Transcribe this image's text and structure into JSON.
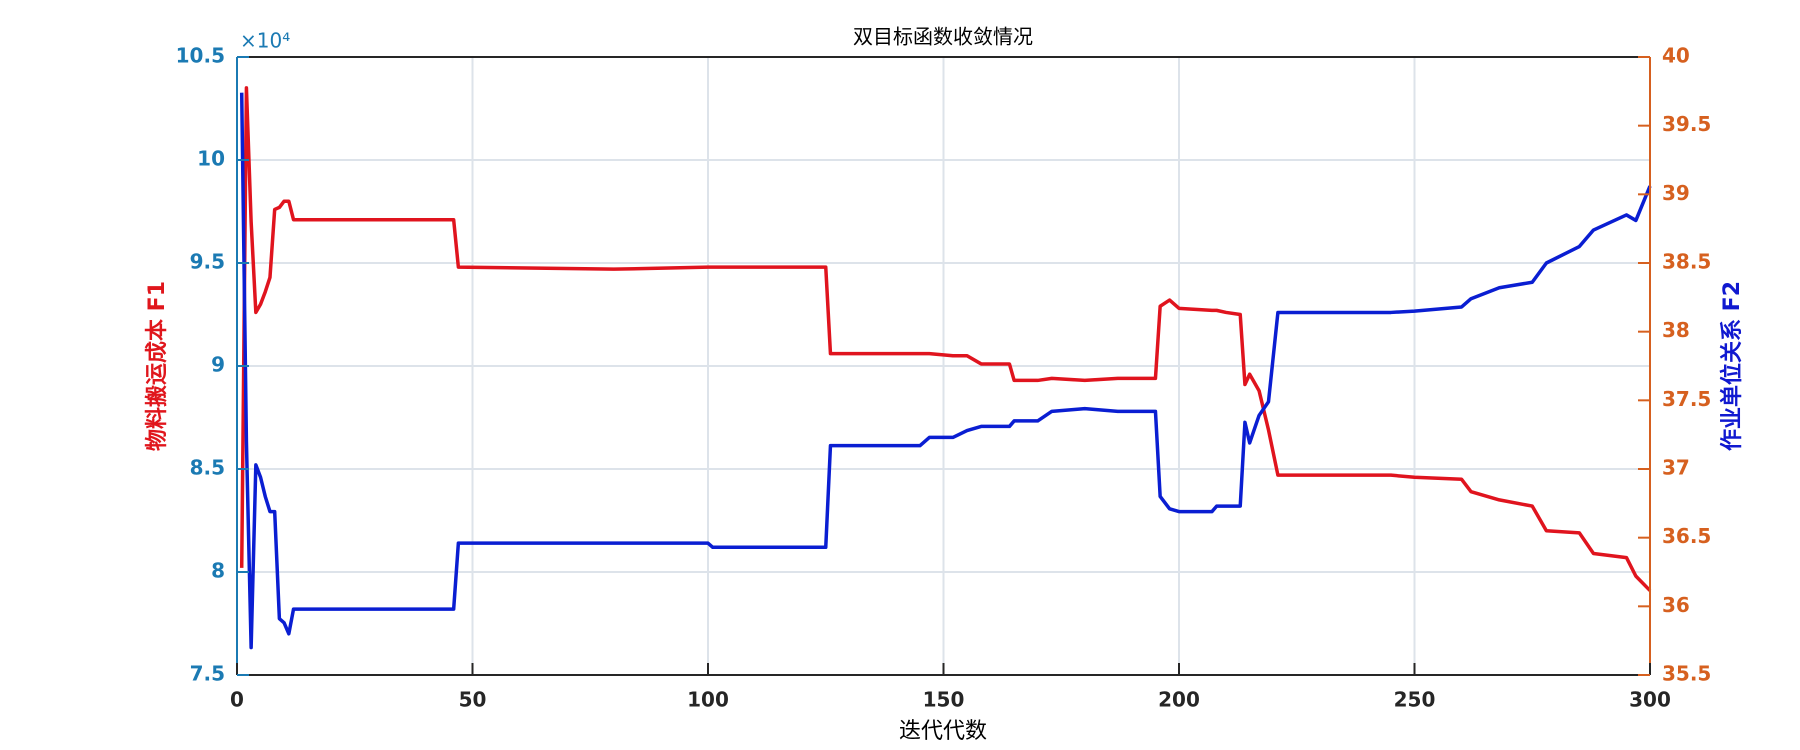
{
  "chart_data": {
    "type": "line",
    "title": "双目标函数收敛情况",
    "xlabel": "迭代代数",
    "ylabel": "物料搬运成本 F1",
    "y2label": "作业单位关系 F2",
    "ylabel_exponent": "×10⁴",
    "ylabel_color": "#e0161c",
    "y2label_color": "#1019d0",
    "ycolor": "#1b7ab3",
    "y2color": "#d6601f",
    "grid": true,
    "xlim": [
      0,
      300
    ],
    "xticks": [
      0,
      50,
      100,
      150,
      200,
      250,
      300
    ],
    "ylim": [
      7.5,
      10.5
    ],
    "yticks": [
      7.5,
      8,
      8.5,
      9,
      9.5,
      10,
      10.5
    ],
    "y2lim": [
      35.5,
      40
    ],
    "y2ticks": [
      35.5,
      36,
      36.5,
      37,
      37.5,
      38,
      38.5,
      39,
      39.5,
      40
    ],
    "x": [
      1,
      2,
      3,
      4,
      5,
      6,
      7,
      8,
      9,
      10,
      11,
      12,
      46,
      47,
      80,
      100,
      101,
      125,
      126,
      145,
      147,
      152,
      155,
      158,
      164,
      165,
      170,
      173,
      180,
      187,
      195,
      196,
      198,
      200,
      207,
      208,
      210,
      213,
      214,
      215,
      217,
      219,
      221,
      245,
      250,
      260,
      262,
      268,
      275,
      278,
      285,
      288,
      295,
      297,
      300
    ],
    "series": [
      {
        "name": "F1",
        "color": "#e0141e",
        "values": [
          8.02,
          10.35,
          9.7,
          9.26,
          9.3,
          9.36,
          9.43,
          9.76,
          9.77,
          9.8,
          9.8,
          9.71,
          9.71,
          9.48,
          9.47,
          9.48,
          9.48,
          9.48,
          9.06,
          9.06,
          9.06,
          9.05,
          9.05,
          9.01,
          9.01,
          8.93,
          8.93,
          8.94,
          8.93,
          8.94,
          8.94,
          9.29,
          9.32,
          9.28,
          9.27,
          9.27,
          9.26,
          9.25,
          8.91,
          8.96,
          8.88,
          8.69,
          8.47,
          8.47,
          8.46,
          8.45,
          8.39,
          8.35,
          8.32,
          8.2,
          8.19,
          8.09,
          8.07,
          7.98,
          7.91
        ]
      },
      {
        "name": "F2",
        "color": "#0a1ed2",
        "axis": "y2",
        "values": [
          39.74,
          37.2,
          35.7,
          37.03,
          36.94,
          36.8,
          36.69,
          36.69,
          35.91,
          35.88,
          35.8,
          35.98,
          35.98,
          36.46,
          36.46,
          36.46,
          36.43,
          36.43,
          37.17,
          37.17,
          37.23,
          37.23,
          37.28,
          37.31,
          37.31,
          37.35,
          37.35,
          37.42,
          37.44,
          37.42,
          37.42,
          36.8,
          36.71,
          36.69,
          36.69,
          36.73,
          36.73,
          36.73,
          37.34,
          37.19,
          37.39,
          37.49,
          38.14,
          38.14,
          38.15,
          38.18,
          38.24,
          38.32,
          38.36,
          38.5,
          38.62,
          38.74,
          38.85,
          38.81,
          39.06
        ]
      }
    ]
  }
}
